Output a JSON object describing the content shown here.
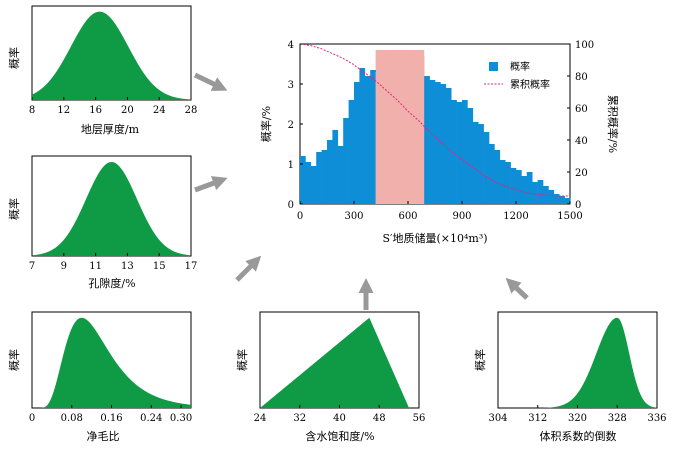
{
  "colors": {
    "dist_fill": "#0f9a46",
    "hist_fill": "#0e8ed6",
    "highlight": "#f2b0ad",
    "cumulative": "#e8227a",
    "arrow": "#999999"
  },
  "panels": [
    {
      "id": "thickness",
      "ylabel": "概率",
      "xlabel": "地层厚度/m",
      "xticks": [
        "8",
        "12",
        "16",
        "20",
        "24",
        "28"
      ],
      "xrange": [
        8,
        28
      ],
      "dist": {
        "type": "sym",
        "mode": 16.5,
        "sigma": 3.6
      }
    },
    {
      "id": "porosity",
      "ylabel": "概率",
      "xlabel": "孔隙度/%",
      "xticks": [
        "7",
        "9",
        "11",
        "13",
        "15",
        "17"
      ],
      "xrange": [
        7,
        17
      ],
      "dist": {
        "type": "sym",
        "mode": 12,
        "sigma": 1.6
      }
    },
    {
      "id": "ntg",
      "ylabel": "概率",
      "xlabel": "净毛比",
      "xticks": [
        "0",
        "0.08",
        "0.16",
        "0.24",
        "0.30"
      ],
      "xrange": [
        0,
        0.32
      ],
      "dist": {
        "type": "lognorm",
        "mode": 0.1,
        "s": 0.45
      }
    },
    {
      "id": "saturation",
      "ylabel": "概率",
      "xlabel": "含水饱和度/%",
      "xticks": [
        "24",
        "32",
        "40",
        "48",
        "56"
      ],
      "xrange": [
        24,
        56
      ],
      "dist": {
        "type": "tri",
        "min": 24,
        "mode": 46,
        "max": 54
      }
    },
    {
      "id": "volfactor",
      "ylabel": "概率",
      "xlabel": "体积系数的倒数",
      "xticks": [
        "304",
        "312",
        "320",
        "328",
        "336"
      ],
      "xrange": [
        304,
        336
      ],
      "dist": {
        "type": "leftskew",
        "mode": 328,
        "sl": 4.2,
        "sr": 2.4
      }
    }
  ],
  "main_chart": {
    "ylabel_left": "概率/%",
    "ylabel_right": "累积概率/%",
    "xlabel": "S′地质储量(×10⁴m³)",
    "xticks": [
      "0",
      "300",
      "600",
      "900",
      "1200",
      "1500"
    ],
    "xrange": [
      0,
      1500
    ],
    "yticks_left": [
      "0",
      "1",
      "2",
      "3",
      "4"
    ],
    "yrange_left": [
      0,
      4
    ],
    "yticks_right": [
      "0",
      "20",
      "40",
      "60",
      "80",
      "100"
    ],
    "yrange_right": [
      0,
      100
    ],
    "legend": {
      "bar": "概率",
      "line": "累积概率"
    },
    "highlight_range": [
      420,
      690
    ]
  },
  "chart_data": {
    "type": "bar",
    "x": [
      0,
      30,
      60,
      90,
      120,
      150,
      180,
      210,
      240,
      270,
      300,
      330,
      360,
      390,
      420,
      450,
      480,
      510,
      540,
      570,
      600,
      630,
      660,
      690,
      720,
      750,
      780,
      810,
      840,
      870,
      900,
      930,
      960,
      990,
      1020,
      1050,
      1080,
      1110,
      1140,
      1170,
      1200,
      1230,
      1260,
      1290,
      1320,
      1350,
      1380,
      1410,
      1440,
      1470
    ],
    "series": [
      {
        "name": "概率",
        "values": [
          1.2,
          1.05,
          0.95,
          1.3,
          1.35,
          1.6,
          1.85,
          1.45,
          2.15,
          2.6,
          3.05,
          3.4,
          3.2,
          3.35,
          3.3,
          3.4,
          3.5,
          3.6,
          3.85,
          3.7,
          3.8,
          3.75,
          3.7,
          3.2,
          3.1,
          3.05,
          3.0,
          2.9,
          2.6,
          2.55,
          2.6,
          2.4,
          2.05,
          2.0,
          1.8,
          1.5,
          1.35,
          1.1,
          1.05,
          0.9,
          0.85,
          0.7,
          0.8,
          0.55,
          0.6,
          0.45,
          0.35,
          0.25,
          0.2,
          0.15
        ]
      },
      {
        "name": "累积概率",
        "x": [
          0,
          60,
          120,
          180,
          240,
          300,
          360,
          420,
          480,
          540,
          600,
          660,
          720,
          780,
          840,
          900,
          960,
          1020,
          1080,
          1140,
          1200,
          1260,
          1320,
          1380,
          1440,
          1500
        ],
        "values": [
          100,
          99,
          97,
          94,
          91,
          87,
          82,
          77,
          71,
          65,
          58,
          52,
          45,
          39,
          33,
          28,
          23,
          18,
          14,
          11,
          9,
          7,
          6,
          5.5,
          5,
          5
        ]
      }
    ],
    "xlim": [
      0,
      1500
    ],
    "ylim": [
      0,
      4
    ]
  }
}
